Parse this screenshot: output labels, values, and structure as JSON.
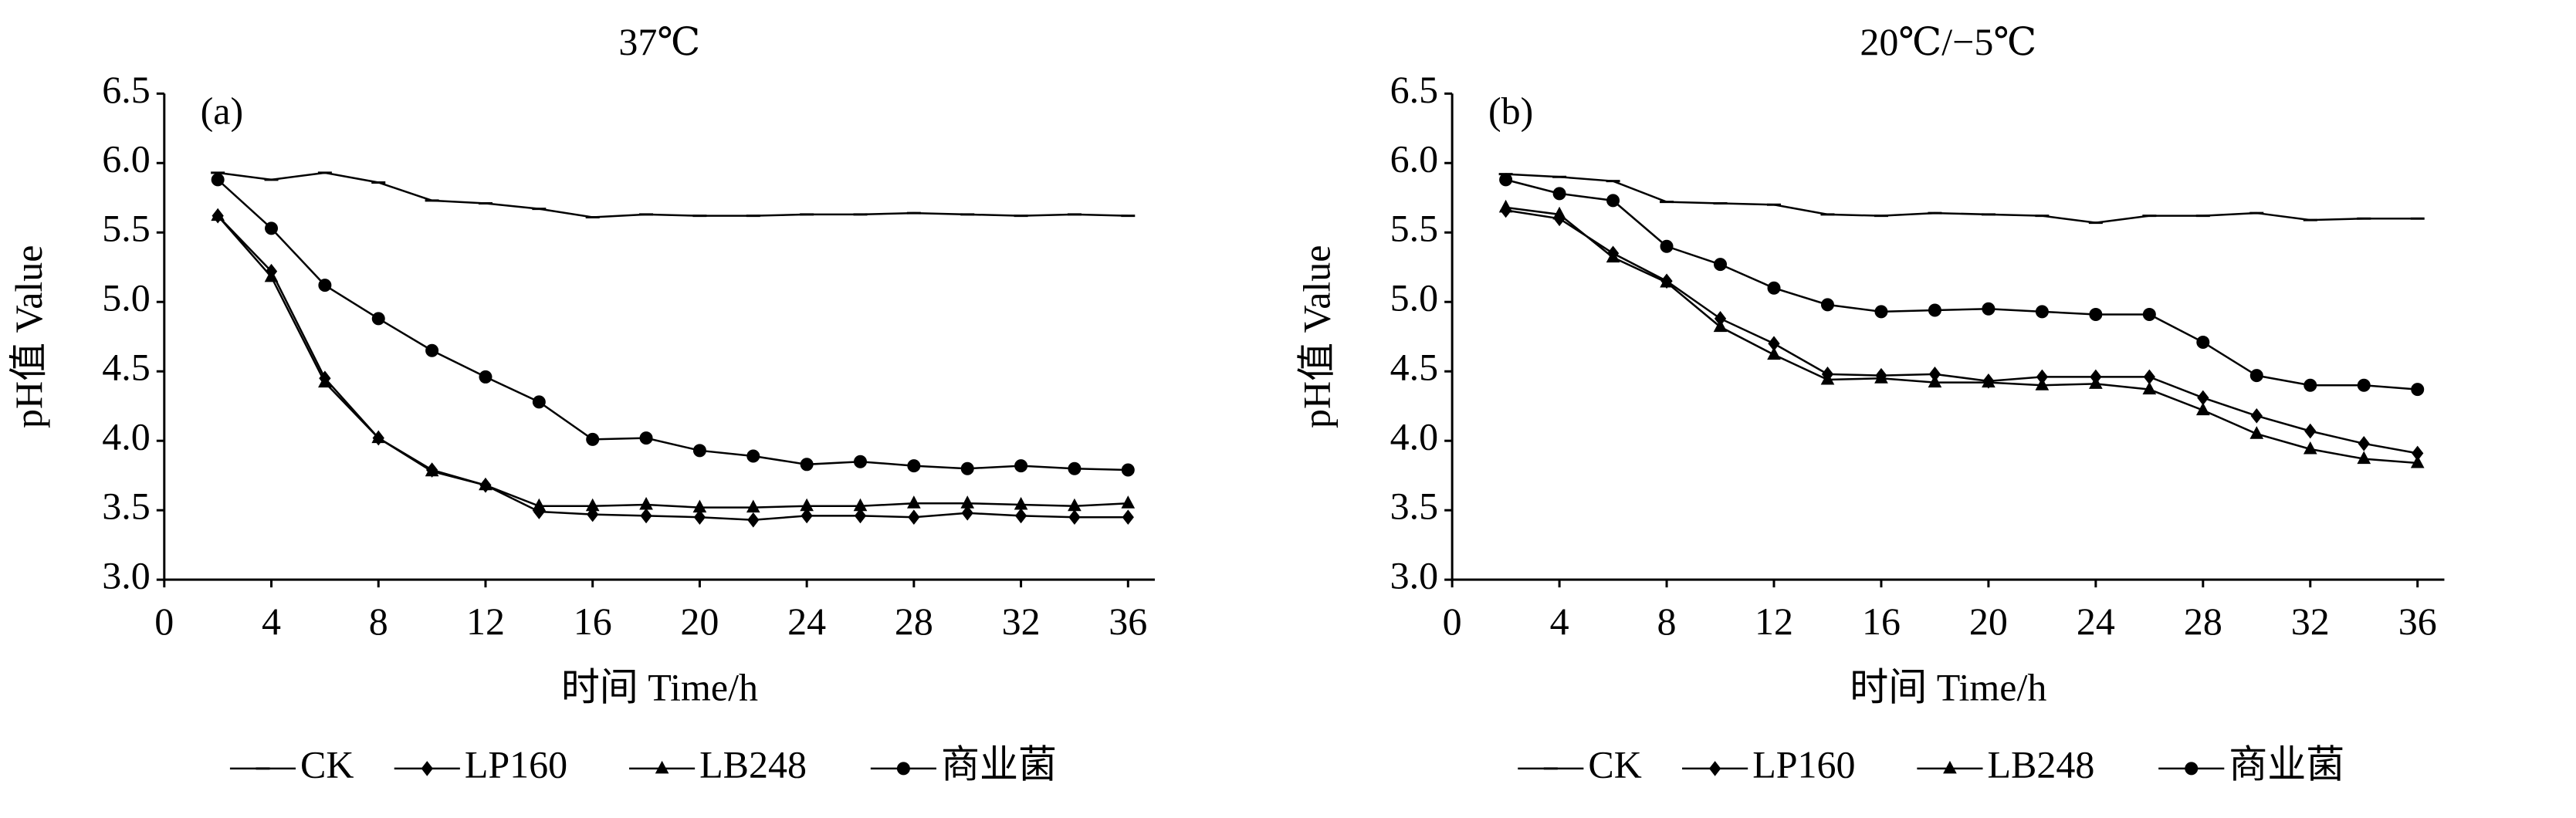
{
  "chart_data": [
    {
      "type": "line",
      "title": "37℃",
      "annotation": "(a)",
      "xlabel": "时间 Time/h",
      "ylabel": "pH值 Value",
      "x": [
        2,
        4,
        6,
        8,
        10,
        12,
        14,
        16,
        18,
        20,
        22,
        24,
        26,
        28,
        30,
        32,
        34,
        36
      ],
      "xlim": [
        0,
        37
      ],
      "xticks": [
        0,
        4,
        8,
        12,
        16,
        20,
        24,
        28,
        32,
        36
      ],
      "ylim": [
        3,
        6.5
      ],
      "yticks": [
        {
          "value": 3,
          "label": "3.0"
        },
        3.5,
        {
          "value": 4,
          "label": "4.0"
        },
        4.5,
        {
          "value": 5,
          "label": "5.0"
        },
        5.5,
        {
          "value": 6,
          "label": "6.0"
        },
        6.5
      ],
      "legend": "bottom",
      "series": [
        {
          "name": "CK",
          "color": "#000000",
          "marker": "dash",
          "values": [
            5.93,
            5.88,
            5.93,
            5.86,
            5.73,
            5.71,
            5.67,
            5.61,
            5.63,
            5.62,
            5.62,
            5.63,
            5.63,
            5.64,
            5.63,
            5.62,
            5.63,
            5.62
          ]
        },
        {
          "name": "LP160",
          "color": "#000000",
          "marker": "diamond",
          "values": [
            5.62,
            5.22,
            4.45,
            4.02,
            3.79,
            3.68,
            3.49,
            3.47,
            3.46,
            3.45,
            3.43,
            3.46,
            3.46,
            3.45,
            3.48,
            3.46,
            3.45,
            3.45
          ]
        },
        {
          "name": "LB248",
          "color": "#000000",
          "marker": "triangle",
          "values": [
            5.62,
            5.18,
            4.42,
            4.02,
            3.78,
            3.68,
            3.53,
            3.53,
            3.54,
            3.52,
            3.52,
            3.53,
            3.53,
            3.55,
            3.55,
            3.54,
            3.53,
            3.55
          ]
        },
        {
          "name": "商业菌",
          "color": "#000000",
          "marker": "circle",
          "values": [
            5.88,
            5.53,
            5.12,
            4.88,
            4.65,
            4.46,
            4.28,
            4.01,
            4.02,
            3.93,
            3.89,
            3.83,
            3.85,
            3.82,
            3.8,
            3.82,
            3.8,
            3.79
          ]
        }
      ]
    },
    {
      "type": "line",
      "title": "20℃/−5℃",
      "annotation": "(b)",
      "xlabel": "时间 Time/h",
      "ylabel": "pH值 Value",
      "x": [
        2,
        4,
        6,
        8,
        10,
        12,
        14,
        16,
        18,
        20,
        22,
        24,
        26,
        28,
        30,
        32,
        34,
        36
      ],
      "xlim": [
        0,
        37
      ],
      "xticks": [
        0,
        4,
        8,
        12,
        16,
        20,
        24,
        28,
        32,
        36
      ],
      "ylim": [
        3,
        6.5
      ],
      "yticks": [
        {
          "value": 3,
          "label": "3.0"
        },
        3.5,
        {
          "value": 4,
          "label": "4.0"
        },
        4.5,
        {
          "value": 5,
          "label": "5.0"
        },
        5.5,
        {
          "value": 6,
          "label": "6.0"
        },
        6.5
      ],
      "legend": "bottom",
      "series": [
        {
          "name": "CK",
          "color": "#000000",
          "marker": "dash",
          "values": [
            5.92,
            5.9,
            5.87,
            5.72,
            5.71,
            5.7,
            5.63,
            5.62,
            5.64,
            5.63,
            5.62,
            5.57,
            5.62,
            5.62,
            5.64,
            5.59,
            5.6,
            5.6
          ]
        },
        {
          "name": "LP160",
          "color": "#000000",
          "marker": "diamond",
          "values": [
            5.66,
            5.6,
            5.35,
            5.15,
            4.88,
            4.7,
            4.48,
            4.47,
            4.48,
            4.43,
            4.46,
            4.46,
            4.46,
            4.31,
            4.18,
            4.07,
            3.98,
            3.91
          ]
        },
        {
          "name": "LB248",
          "color": "#000000",
          "marker": "triangle",
          "values": [
            5.68,
            5.63,
            5.32,
            5.14,
            4.82,
            4.62,
            4.44,
            4.45,
            4.42,
            4.42,
            4.4,
            4.41,
            4.37,
            4.22,
            4.05,
            3.94,
            3.87,
            3.84
          ]
        },
        {
          "name": "商业菌",
          "color": "#000000",
          "marker": "circle",
          "values": [
            5.88,
            5.78,
            5.73,
            5.4,
            5.27,
            5.1,
            4.98,
            4.93,
            4.94,
            4.95,
            4.93,
            4.91,
            4.91,
            4.71,
            4.47,
            4.4,
            4.4,
            4.37
          ]
        }
      ]
    }
  ]
}
